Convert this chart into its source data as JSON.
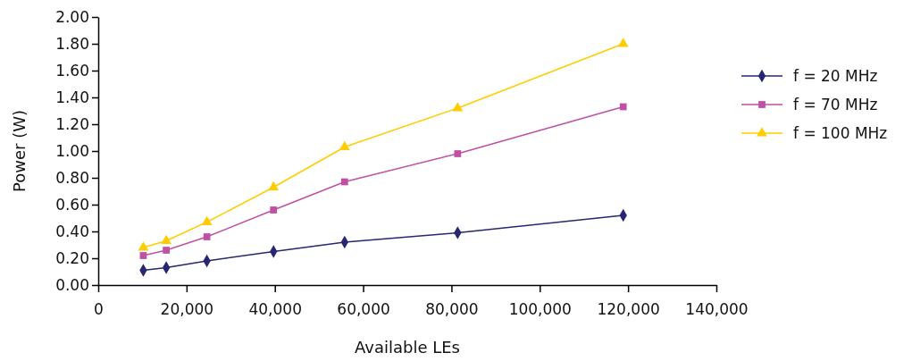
{
  "chart_data": {
    "type": "line",
    "xlabel": "Available LEs",
    "ylabel": "Power (W)",
    "xlim": [
      0,
      140000
    ],
    "xticks": [
      0,
      {
        "value": 20000,
        "label": "20,000"
      },
      {
        "value": 40000,
        "label": "40,000"
      },
      {
        "value": 60000,
        "label": "60,000"
      },
      {
        "value": 80000,
        "label": "80,000"
      },
      {
        "value": 100000,
        "label": "100,000"
      },
      {
        "value": 120000,
        "label": "120,000"
      },
      {
        "value": 140000,
        "label": "140,000"
      }
    ],
    "ylim": [
      0,
      2
    ],
    "yticks": [
      {
        "value": 0,
        "label": "0.00"
      },
      {
        "value": 0.2,
        "label": "0.20"
      },
      {
        "value": 0.4,
        "label": "0.40"
      },
      {
        "value": 0.6,
        "label": "0.60"
      },
      {
        "value": 0.8,
        "label": "0.80"
      },
      {
        "value": 1,
        "label": "1.00"
      },
      {
        "value": 1.2,
        "label": "1.20"
      },
      {
        "value": 1.4,
        "label": "1.40"
      },
      {
        "value": 1.6,
        "label": "1.60"
      },
      {
        "value": 1.8,
        "label": "1.80"
      },
      {
        "value": 2,
        "label": "2.00"
      }
    ],
    "x": [
      10200,
      15400,
      24600,
      39700,
      55800,
      81400,
      118900
    ],
    "grid": false,
    "legend": "right",
    "line_style": "solid",
    "series": [
      {
        "name": "f = 20 MHz",
        "color": "#262673",
        "marker": "diamond",
        "values": [
          0.11,
          0.13,
          0.18,
          0.25,
          0.32,
          0.39,
          0.52
        ]
      },
      {
        "name": "f = 70 MHz",
        "color": "#bf50a3",
        "marker": "square",
        "values": [
          0.22,
          0.26,
          0.36,
          0.56,
          0.77,
          0.98,
          1.33
        ]
      },
      {
        "name": "f = 100 MHz",
        "color": "#ffcc00",
        "marker": "triangle",
        "values": [
          0.28,
          0.33,
          0.47,
          0.73,
          1.03,
          1.32,
          1.8
        ]
      }
    ]
  }
}
